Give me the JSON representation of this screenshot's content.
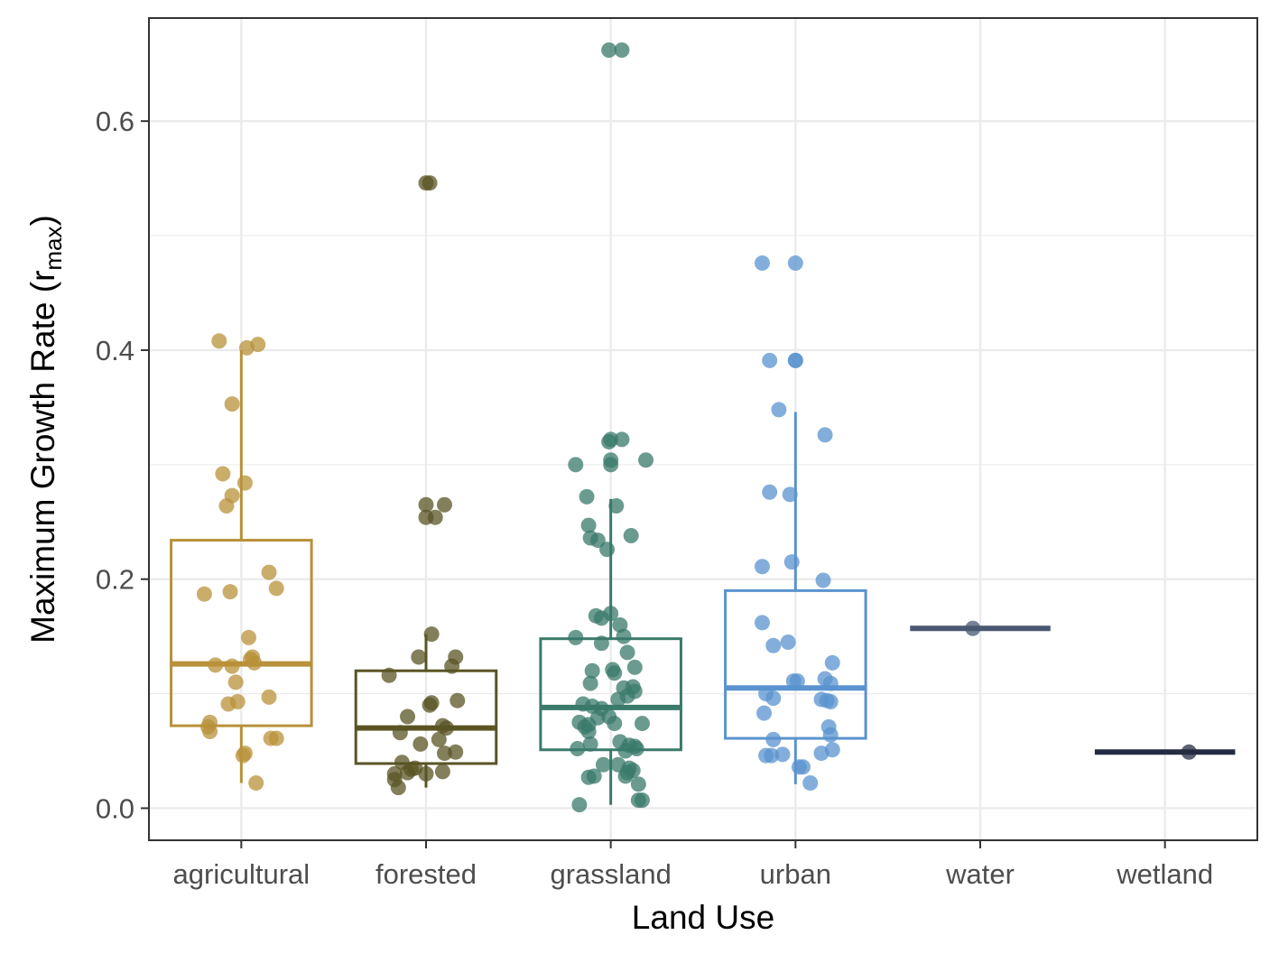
{
  "chart_data": {
    "type": "box",
    "title": "",
    "xlabel": "Land Use",
    "ylabel": {
      "main": "Maximum Growth Rate (r",
      "subscript": "max",
      "close": ")"
    },
    "categories": [
      "agricultural",
      "forested",
      "grassland",
      "urban",
      "water",
      "wetland"
    ],
    "ylim": [
      -0.028,
      0.69
    ],
    "yticks": [
      0.0,
      0.2,
      0.4,
      0.6
    ],
    "ytick_labels": [
      "0.0",
      "0.2",
      "0.4",
      "0.6"
    ],
    "grid": true,
    "legend": "none",
    "colors": {
      "agricultural": "#B8913A",
      "forested": "#5A5424",
      "grassland": "#3A7A6A",
      "urban": "#5A93CF",
      "water": "#4A5872",
      "wetland": "#252C42",
      "grid": "#ebebeb",
      "panel_border": "#333333",
      "axis_text": "#4d4d4d"
    },
    "boxes": [
      {
        "category": "agricultural",
        "q1": 0.072,
        "median": 0.126,
        "q3": 0.234,
        "whisker_low": 0.022,
        "whisker_high": 0.4
      },
      {
        "category": "forested",
        "q1": 0.039,
        "median": 0.07,
        "q3": 0.12,
        "whisker_low": 0.018,
        "whisker_high": 0.152
      },
      {
        "category": "grassland",
        "q1": 0.051,
        "median": 0.088,
        "q3": 0.148,
        "whisker_low": 0.003,
        "whisker_high": 0.27
      },
      {
        "category": "urban",
        "q1": 0.061,
        "median": 0.105,
        "q3": 0.19,
        "whisker_low": 0.021,
        "whisker_high": 0.346
      },
      {
        "category": "water",
        "q1": 0.157,
        "median": 0.157,
        "q3": 0.157,
        "whisker_low": 0.157,
        "whisker_high": 0.157
      },
      {
        "category": "wetland",
        "q1": 0.049,
        "median": 0.049,
        "q3": 0.049,
        "whisker_low": 0.049,
        "whisker_high": 0.049
      }
    ],
    "points": [
      {
        "category": "agricultural",
        "values": [
          [
            -0.12,
            0.408
          ],
          [
            0.03,
            0.402
          ],
          [
            0.09,
            0.405
          ],
          [
            -0.05,
            0.353
          ],
          [
            -0.1,
            0.292
          ],
          [
            0.02,
            0.284
          ],
          [
            -0.05,
            0.273
          ],
          [
            -0.08,
            0.264
          ],
          [
            0.15,
            0.206
          ],
          [
            0.19,
            0.192
          ],
          [
            -0.2,
            0.187
          ],
          [
            -0.06,
            0.189
          ],
          [
            0.04,
            0.149
          ],
          [
            0.05,
            0.13
          ],
          [
            0.06,
            0.132
          ],
          [
            0.07,
            0.127
          ],
          [
            -0.14,
            0.125
          ],
          [
            -0.05,
            0.124
          ],
          [
            -0.03,
            0.11
          ],
          [
            0.15,
            0.097
          ],
          [
            -0.02,
            0.093
          ],
          [
            -0.07,
            0.091
          ],
          [
            -0.17,
            0.075
          ],
          [
            -0.18,
            0.071
          ],
          [
            -0.17,
            0.067
          ],
          [
            0.16,
            0.061
          ],
          [
            0.19,
            0.061
          ],
          [
            0.02,
            0.048
          ],
          [
            0.01,
            0.046
          ],
          [
            0.08,
            0.022
          ]
        ]
      },
      {
        "category": "forested",
        "values": [
          [
            0.0,
            0.546
          ],
          [
            0.02,
            0.546
          ],
          [
            0.0,
            0.265
          ],
          [
            0.1,
            0.265
          ],
          [
            0.0,
            0.254
          ],
          [
            0.05,
            0.254
          ],
          [
            0.03,
            0.152
          ],
          [
            0.16,
            0.132
          ],
          [
            -0.04,
            0.132
          ],
          [
            -0.2,
            0.116
          ],
          [
            0.14,
            0.124
          ],
          [
            0.03,
            0.092
          ],
          [
            0.02,
            0.09
          ],
          [
            0.17,
            0.094
          ],
          [
            -0.1,
            0.08
          ],
          [
            0.09,
            0.072
          ],
          [
            0.11,
            0.07
          ],
          [
            0.1,
            0.048
          ],
          [
            0.16,
            0.049
          ],
          [
            -0.03,
            0.056
          ],
          [
            0.07,
            0.06
          ],
          [
            -0.14,
            0.066
          ],
          [
            -0.13,
            0.04
          ],
          [
            -0.08,
            0.034
          ],
          [
            -0.06,
            0.035
          ],
          [
            -0.1,
            0.031
          ],
          [
            -0.17,
            0.03
          ],
          [
            -0.17,
            0.025
          ],
          [
            -0.15,
            0.018
          ],
          [
            0.0,
            0.03
          ],
          [
            0.09,
            0.032
          ]
        ]
      },
      {
        "category": "grassland",
        "values": [
          [
            -0.01,
            0.662
          ],
          [
            0.06,
            0.662
          ],
          [
            0.0,
            0.322
          ],
          [
            -0.01,
            0.32
          ],
          [
            0.06,
            0.322
          ],
          [
            0.0,
            0.304
          ],
          [
            0.0,
            0.3
          ],
          [
            0.19,
            0.304
          ],
          [
            -0.19,
            0.3
          ],
          [
            -0.13,
            0.272
          ],
          [
            0.03,
            0.264
          ],
          [
            -0.12,
            0.247
          ],
          [
            -0.11,
            0.236
          ],
          [
            -0.07,
            0.234
          ],
          [
            0.11,
            0.238
          ],
          [
            -0.02,
            0.226
          ],
          [
            -0.08,
            0.168
          ],
          [
            -0.05,
            0.166
          ],
          [
            0.0,
            0.17
          ],
          [
            0.05,
            0.16
          ],
          [
            0.07,
            0.15
          ],
          [
            -0.19,
            0.149
          ],
          [
            -0.05,
            0.144
          ],
          [
            0.09,
            0.136
          ],
          [
            -0.1,
            0.12
          ],
          [
            0.01,
            0.121
          ],
          [
            0.02,
            0.118
          ],
          [
            0.13,
            0.123
          ],
          [
            -0.11,
            0.109
          ],
          [
            0.07,
            0.105
          ],
          [
            0.12,
            0.106
          ],
          [
            0.13,
            0.102
          ],
          [
            0.09,
            0.098
          ],
          [
            0.04,
            0.095
          ],
          [
            -0.15,
            0.091
          ],
          [
            -0.1,
            0.089
          ],
          [
            -0.05,
            0.087
          ],
          [
            -0.07,
            0.079
          ],
          [
            -0.01,
            0.08
          ],
          [
            0.02,
            0.074
          ],
          [
            -0.17,
            0.075
          ],
          [
            -0.14,
            0.071
          ],
          [
            -0.12,
            0.073
          ],
          [
            -0.12,
            0.067
          ],
          [
            0.17,
            0.074
          ],
          [
            -0.11,
            0.056
          ],
          [
            0.05,
            0.058
          ],
          [
            0.1,
            0.055
          ],
          [
            0.13,
            0.054
          ],
          [
            0.14,
            0.052
          ],
          [
            -0.18,
            0.052
          ],
          [
            0.08,
            0.05
          ],
          [
            -0.04,
            0.038
          ],
          [
            0.04,
            0.038
          ],
          [
            0.1,
            0.035
          ],
          [
            0.12,
            0.033
          ],
          [
            0.09,
            0.031
          ],
          [
            -0.12,
            0.027
          ],
          [
            -0.09,
            0.028
          ],
          [
            0.08,
            0.028
          ],
          [
            0.15,
            0.021
          ],
          [
            0.15,
            0.007
          ],
          [
            0.17,
            0.007
          ],
          [
            -0.17,
            0.003
          ]
        ]
      },
      {
        "category": "urban",
        "values": [
          [
            -0.18,
            0.476
          ],
          [
            0.0,
            0.476
          ],
          [
            0.0,
            0.391
          ],
          [
            -0.14,
            0.391
          ],
          [
            0.0,
            0.391
          ],
          [
            -0.09,
            0.348
          ],
          [
            0.16,
            0.326
          ],
          [
            -0.14,
            0.276
          ],
          [
            -0.03,
            0.274
          ],
          [
            -0.18,
            0.211
          ],
          [
            -0.02,
            0.215
          ],
          [
            0.15,
            0.199
          ],
          [
            -0.18,
            0.162
          ],
          [
            -0.12,
            0.142
          ],
          [
            -0.04,
            0.145
          ],
          [
            0.2,
            0.127
          ],
          [
            -0.01,
            0.111
          ],
          [
            0.01,
            0.111
          ],
          [
            0.16,
            0.113
          ],
          [
            0.19,
            0.109
          ],
          [
            -0.16,
            0.1
          ],
          [
            -0.12,
            0.096
          ],
          [
            0.14,
            0.095
          ],
          [
            0.17,
            0.094
          ],
          [
            0.19,
            0.093
          ],
          [
            -0.17,
            0.083
          ],
          [
            0.18,
            0.071
          ],
          [
            0.19,
            0.064
          ],
          [
            -0.12,
            0.06
          ],
          [
            0.2,
            0.051
          ],
          [
            -0.16,
            0.046
          ],
          [
            -0.13,
            0.046
          ],
          [
            -0.07,
            0.047
          ],
          [
            0.14,
            0.048
          ],
          [
            0.02,
            0.036
          ],
          [
            0.04,
            0.036
          ],
          [
            0.08,
            0.022
          ]
        ]
      },
      {
        "category": "water",
        "values": [
          [
            -0.04,
            0.157
          ]
        ]
      },
      {
        "category": "wetland",
        "values": [
          [
            0.13,
            0.049
          ]
        ]
      }
    ]
  }
}
